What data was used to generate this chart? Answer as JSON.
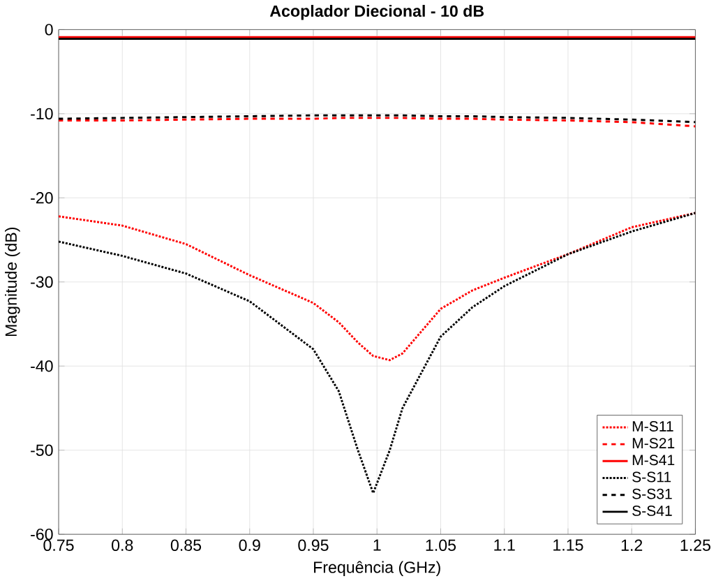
{
  "chart_data": {
    "type": "line",
    "title": "Acoplador Diecional - 10 dB",
    "xlabel": "Frequência (GHz)",
    "ylabel": "Magnitude (dB)",
    "xlim": [
      0.75,
      1.25
    ],
    "xticks": [
      0.75,
      0.8,
      0.85,
      0.9,
      0.95,
      1,
      1.05,
      1.1,
      1.15,
      1.2,
      1.25
    ],
    "ylim": [
      -60,
      0
    ],
    "yticks": [
      -60,
      -50,
      -40,
      -30,
      -20,
      -10,
      0
    ],
    "grid": true,
    "legend": "bottom right",
    "x": [
      0.75,
      0.8,
      0.85,
      0.9,
      0.95,
      0.97,
      0.985,
      0.997,
      1.01,
      1.02,
      1.05,
      1.075,
      1.1,
      1.15,
      1.2,
      1.25
    ],
    "series": [
      {
        "name": "M-S11",
        "color": "#ff0000",
        "line_style": "dotted",
        "values": [
          -22.2,
          -23.3,
          -25.5,
          -29.2,
          -32.5,
          -34.8,
          -37.2,
          -38.8,
          -39.3,
          -38.5,
          -33.2,
          -31,
          -29.5,
          -26.7,
          -23.5,
          -21.8
        ]
      },
      {
        "name": "M-S21",
        "color": "#ff0000",
        "line_style": "dashed",
        "values": [
          -10.8,
          -10.8,
          -10.7,
          -10.6,
          -10.6,
          -10.5,
          -10.5,
          -10.5,
          -10.5,
          -10.5,
          -10.6,
          -10.6,
          -10.7,
          -10.8,
          -11,
          -11.5
        ]
      },
      {
        "name": "M-S41",
        "color": "#ff0000",
        "line_style": "solid",
        "values": [
          -0.9,
          -0.9,
          -0.9,
          -0.9,
          -0.9,
          -0.9,
          -0.9,
          -0.9,
          -0.9,
          -0.9,
          -0.9,
          -0.9,
          -0.9,
          -0.9,
          -0.9,
          -0.9
        ]
      },
      {
        "name": "S-S11",
        "color": "#000000",
        "line_style": "dotted",
        "values": [
          -25.2,
          -26.9,
          -29,
          -32.3,
          -38,
          -43,
          -50,
          -55.1,
          -50,
          -45,
          -36.5,
          -33,
          -30.5,
          -26.7,
          -24,
          -21.8
        ]
      },
      {
        "name": "S-S31",
        "color": "#000000",
        "line_style": "dashed",
        "values": [
          -10.6,
          -10.5,
          -10.4,
          -10.3,
          -10.2,
          -10.2,
          -10.2,
          -10.2,
          -10.2,
          -10.2,
          -10.3,
          -10.3,
          -10.4,
          -10.5,
          -10.7,
          -11
        ]
      },
      {
        "name": "S-S41",
        "color": "#000000",
        "line_style": "solid",
        "values": [
          -1.1,
          -1.1,
          -1.1,
          -1.1,
          -1.1,
          -1.1,
          -1.1,
          -1.1,
          -1.1,
          -1.1,
          -1.1,
          -1.1,
          -1.1,
          -1.1,
          -1.1,
          -1.1
        ]
      }
    ]
  }
}
